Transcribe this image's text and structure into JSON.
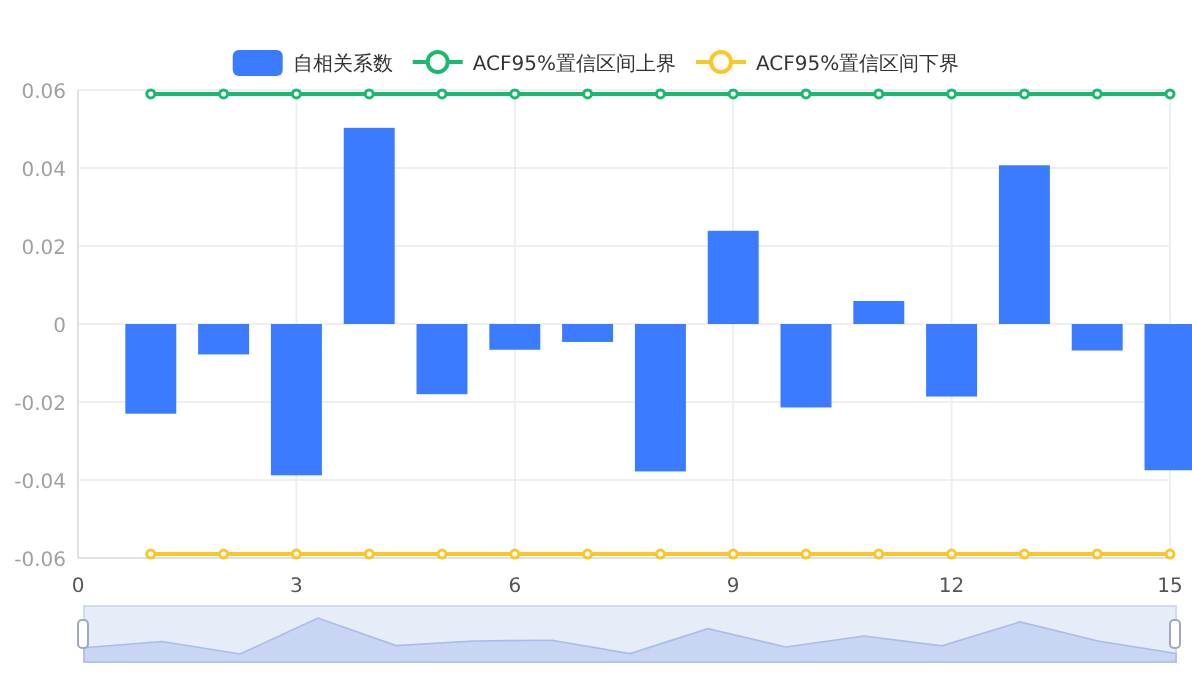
{
  "chart_data": {
    "type": "bar",
    "x": [
      1,
      2,
      3,
      4,
      5,
      6,
      7,
      8,
      9,
      10,
      11,
      12,
      13,
      14,
      15
    ],
    "series": [
      {
        "name": "自相关系数",
        "color": "#3a7bff",
        "values": [
          -0.023,
          -0.0078,
          -0.0388,
          0.0503,
          -0.018,
          -0.0066,
          -0.0046,
          -0.0378,
          0.0239,
          -0.0214,
          0.0059,
          -0.0186,
          0.0407,
          -0.0068,
          -0.0375
        ]
      },
      {
        "name": "ACF95%置信区间上界",
        "type": "line",
        "color": "#1bb96d",
        "values": [
          0.059,
          0.059,
          0.059,
          0.059,
          0.059,
          0.059,
          0.059,
          0.059,
          0.059,
          0.059,
          0.059,
          0.059,
          0.059,
          0.059,
          0.059
        ]
      },
      {
        "name": "ACF95%置信区间下界",
        "type": "line",
        "color": "#fac62a",
        "values": [
          -0.059,
          -0.059,
          -0.059,
          -0.059,
          -0.059,
          -0.059,
          -0.059,
          -0.059,
          -0.059,
          -0.059,
          -0.059,
          -0.059,
          -0.059,
          -0.059,
          -0.059
        ]
      }
    ],
    "xlim": [
      0,
      15
    ],
    "ylim": [
      -0.06,
      0.06
    ],
    "xticks": [
      0,
      3,
      6,
      9,
      12,
      15
    ],
    "yticks": [
      -0.06,
      -0.04,
      -0.02,
      0,
      0.02,
      0.04,
      0.06
    ],
    "grid": true,
    "legend": "top",
    "marker": "circle"
  }
}
